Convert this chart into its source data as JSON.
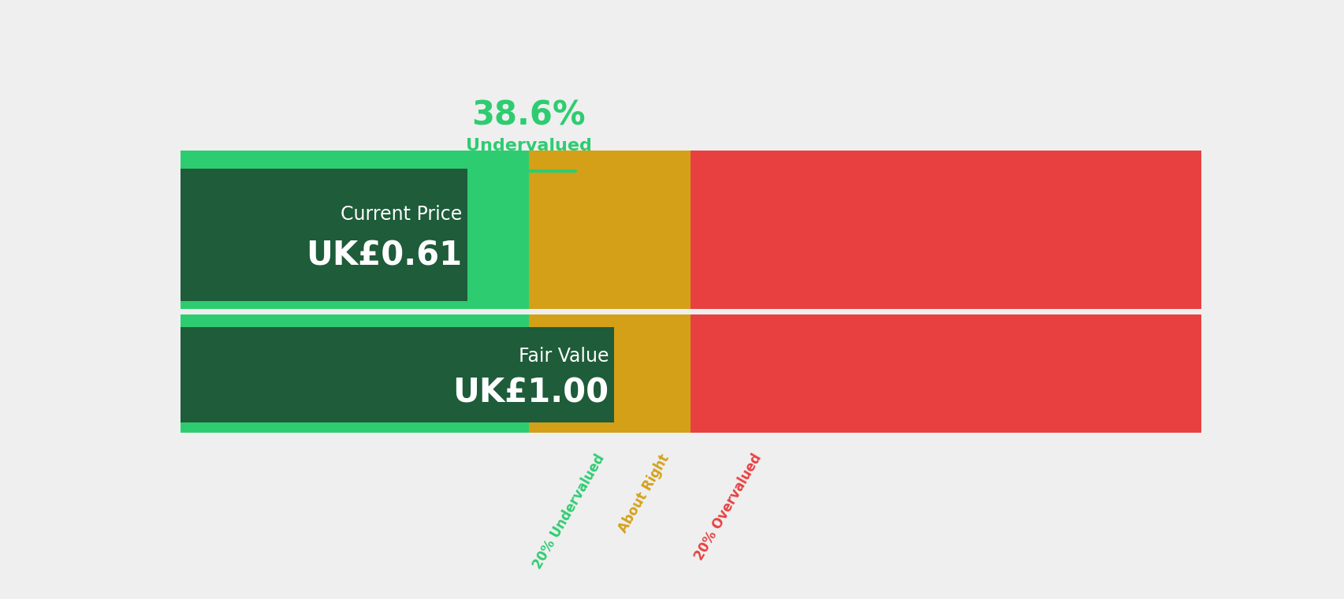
{
  "bg_color": "#efefef",
  "pct_text": "38.6%",
  "pct_label": "Undervalued",
  "pct_color": "#2ecc71",
  "current_price_label": "Current Price",
  "current_price_value": "UK£0.61",
  "fair_value_label": "Fair Value",
  "fair_value_value": "UK£1.00",
  "bar_colors": {
    "green_light": "#2ecc71",
    "green_dark": "#1e5c3a",
    "orange": "#d4a017",
    "red": "#e84040"
  },
  "segment_labels": [
    "20% Undervalued",
    "About Right",
    "20% Overvalued"
  ],
  "segment_label_colors": [
    "#2ecc71",
    "#d4a017",
    "#e84040"
  ],
  "annotation_line_color": "#2ecc71",
  "current_price": 0.61,
  "fair_value": 1.0,
  "range_min": 0.0,
  "range_max": 1.35,
  "zone_20_under": 0.8,
  "zone_20_over": 1.2
}
